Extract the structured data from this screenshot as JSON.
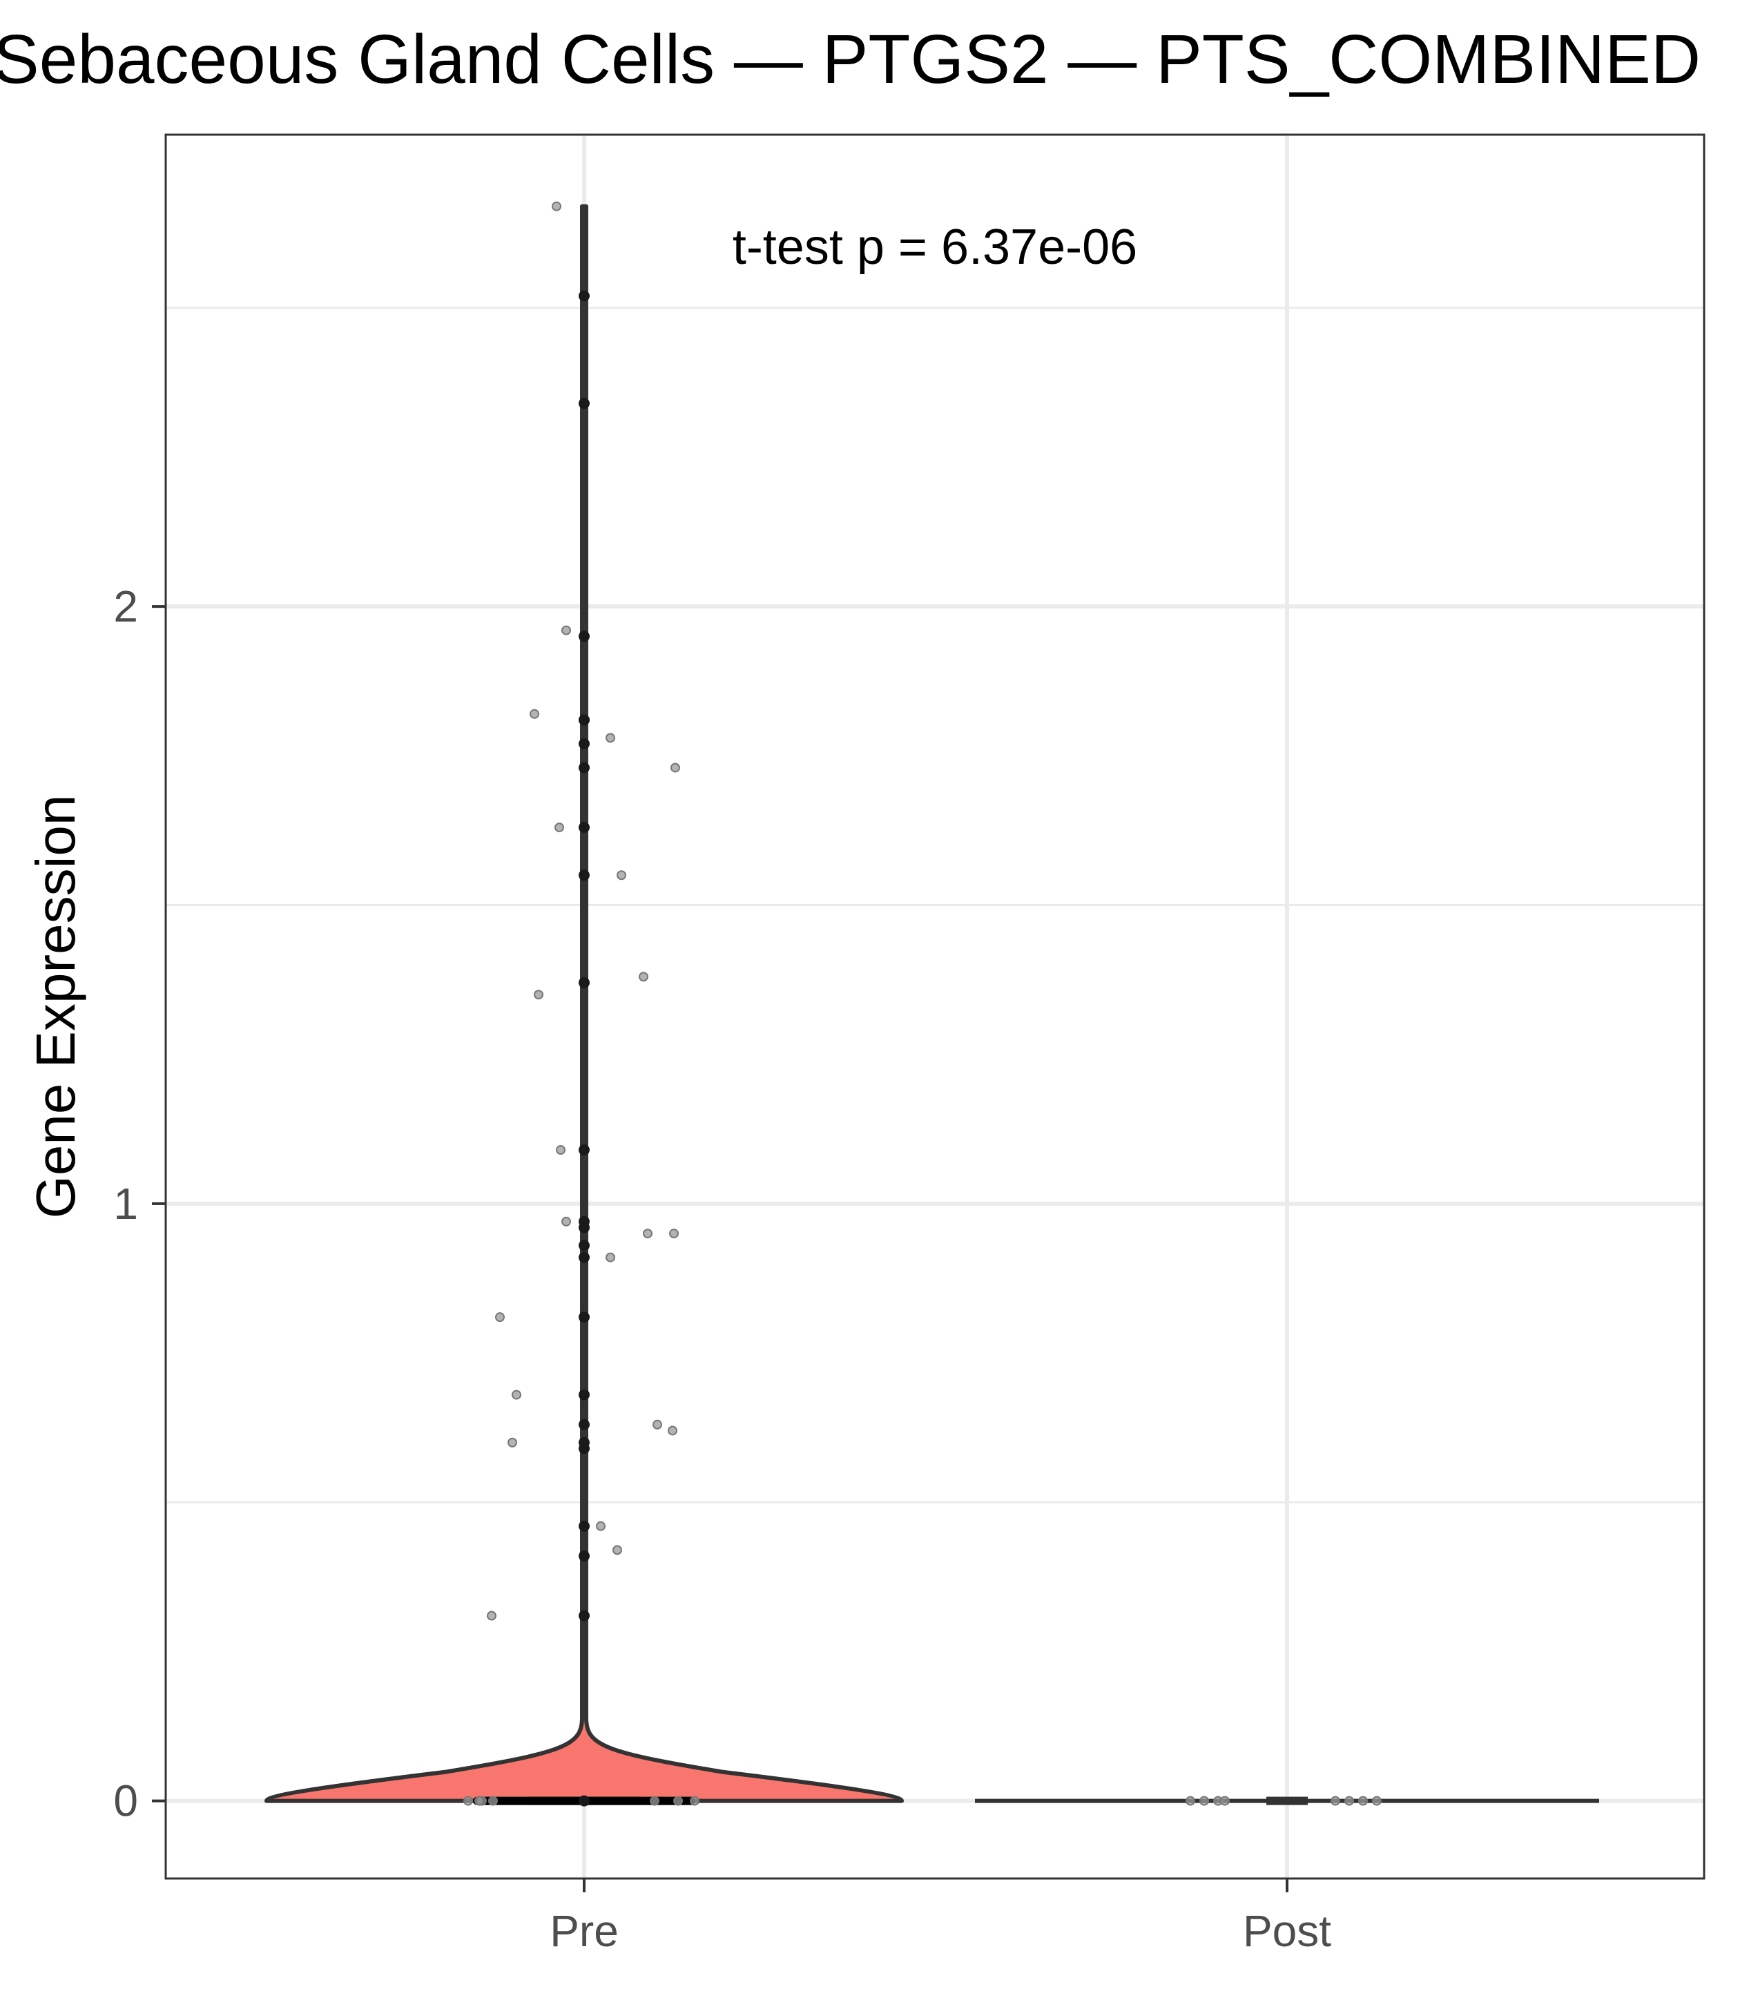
{
  "chart_data": {
    "type": "violin",
    "title": "Sebaceous Gland Cells — PTGS2 — PTS_COMBINED",
    "xlabel": "",
    "ylabel": "Gene Expression",
    "categories": [
      "Pre",
      "Post"
    ],
    "y_ticks": [
      0,
      1,
      2
    ],
    "ylim": [
      -0.13,
      2.79
    ],
    "grid": true,
    "legend": "none",
    "annotation": "t-test p = 6.37e-06",
    "colors": {
      "Pre": "#F8766D",
      "Post": "#00BFC4"
    },
    "series": [
      {
        "name": "Pre",
        "values": [
          2.67,
          2.52,
          2.34,
          1.96,
          1.95,
          1.82,
          1.81,
          1.81,
          1.78,
          1.77,
          1.73,
          1.73,
          1.63,
          1.63,
          1.55,
          1.55,
          1.38,
          1.37,
          1.35,
          1.09,
          1.09,
          0.97,
          0.97,
          0.96,
          0.95,
          0.95,
          0.93,
          0.91,
          0.91,
          0.81,
          0.81,
          0.68,
          0.68,
          0.63,
          0.63,
          0.62,
          0.6,
          0.6,
          0.59,
          0.46,
          0.46,
          0.42,
          0.41,
          0.31,
          0.31,
          0,
          0,
          0,
          0,
          0,
          0,
          0,
          0
        ]
      },
      {
        "name": "Post",
        "values": [
          0,
          0,
          0,
          0,
          0,
          0,
          0,
          0
        ]
      }
    ]
  }
}
